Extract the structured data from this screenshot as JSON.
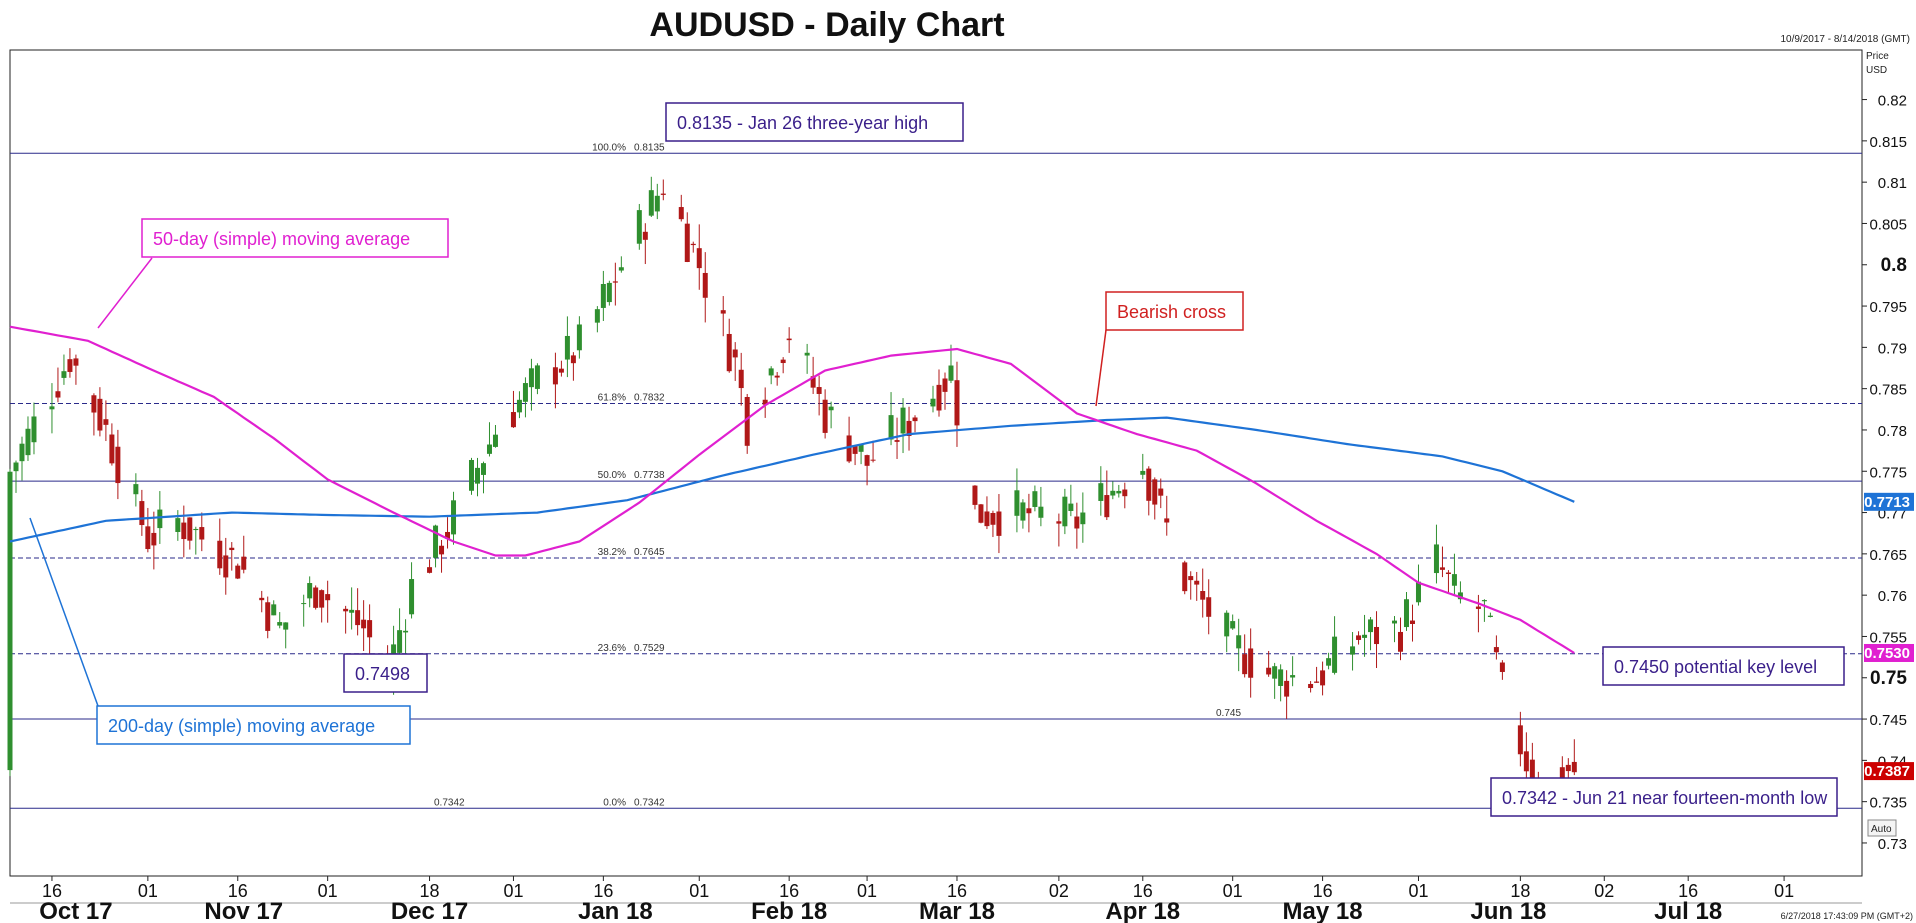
{
  "chart_data": {
    "type": "candlestick",
    "title": "AUDUSD - Daily Chart",
    "date_range": "10/9/2017 - 8/14/2018 (GMT)",
    "axis_unit_line1": "Price",
    "axis_unit_line2": "USD",
    "auto_label": "Auto",
    "footer_text": "6/27/2018 17:43:09 PM (GMT+2)",
    "ylim": [
      0.726,
      0.826
    ],
    "y_ticks": [
      "0.82",
      "0.815",
      "0.81",
      "0.805",
      "0.8",
      "0.795",
      "0.79",
      "0.785",
      "0.78",
      "0.775",
      "0.77",
      "0.765",
      "0.76",
      "0.755",
      "0.75",
      "0.745",
      "0.74",
      "0.735",
      "0.73"
    ],
    "y_ticks_bold": [
      "0.8",
      "0.75"
    ],
    "x_day_ticks": [
      {
        "label": "16",
        "date": "2017-10-16"
      },
      {
        "label": "01",
        "date": "2017-11-01"
      },
      {
        "label": "16",
        "date": "2017-11-16"
      },
      {
        "label": "01",
        "date": "2017-12-01"
      },
      {
        "label": "18",
        "date": "2017-12-18"
      },
      {
        "label": "01",
        "date": "2018-01-01"
      },
      {
        "label": "16",
        "date": "2018-01-16"
      },
      {
        "label": "01",
        "date": "2018-02-01"
      },
      {
        "label": "16",
        "date": "2018-02-16"
      },
      {
        "label": "01",
        "date": "2018-03-01"
      },
      {
        "label": "16",
        "date": "2018-03-16"
      },
      {
        "label": "02",
        "date": "2018-04-02"
      },
      {
        "label": "16",
        "date": "2018-04-16"
      },
      {
        "label": "01",
        "date": "2018-05-01"
      },
      {
        "label": "16",
        "date": "2018-05-16"
      },
      {
        "label": "01",
        "date": "2018-06-01"
      },
      {
        "label": "18",
        "date": "2018-06-18"
      },
      {
        "label": "02",
        "date": "2018-07-02"
      },
      {
        "label": "16",
        "date": "2018-07-16"
      },
      {
        "label": "01",
        "date": "2018-08-01"
      }
    ],
    "x_month_labels": [
      {
        "label": "Oct 17",
        "date": "2017-10-20"
      },
      {
        "label": "Nov 17",
        "date": "2017-11-17"
      },
      {
        "label": "Dec 17",
        "date": "2017-12-18"
      },
      {
        "label": "Jan 18",
        "date": "2018-01-18"
      },
      {
        "label": "Feb 18",
        "date": "2018-02-16"
      },
      {
        "label": "Mar 18",
        "date": "2018-03-16"
      },
      {
        "label": "Apr 18",
        "date": "2018-04-16"
      },
      {
        "label": "May 18",
        "date": "2018-05-16"
      },
      {
        "label": "Jun 18",
        "date": "2018-06-16"
      },
      {
        "label": "Jul 18",
        "date": "2018-07-16"
      }
    ],
    "x_start": "2017-10-09",
    "x_end": "2018-08-14",
    "sma_start": "2017-10-09",
    "sma_end": "2018-06-27",
    "sma50_knots": [
      [
        "2017-10-09",
        0.7925
      ],
      [
        "2017-10-22",
        0.7908
      ],
      [
        "2017-11-01",
        0.7875
      ],
      [
        "2017-11-12",
        0.784
      ],
      [
        "2017-11-22",
        0.779
      ],
      [
        "2017-12-01",
        0.774
      ],
      [
        "2017-12-12",
        0.77
      ],
      [
        "2017-12-22",
        0.7665
      ],
      [
        "2017-12-29",
        0.7648
      ],
      [
        "2018-01-03",
        0.7648
      ],
      [
        "2018-01-12",
        0.7665
      ],
      [
        "2018-01-22",
        0.7712
      ],
      [
        "2018-02-01",
        0.777
      ],
      [
        "2018-02-12",
        0.783
      ],
      [
        "2018-02-22",
        0.7872
      ],
      [
        "2018-03-05",
        0.789
      ],
      [
        "2018-03-16",
        0.7898
      ],
      [
        "2018-03-25",
        0.788
      ],
      [
        "2018-04-05",
        0.782
      ],
      [
        "2018-04-15",
        0.7795
      ],
      [
        "2018-04-25",
        0.7775
      ],
      [
        "2018-05-05",
        0.7735
      ],
      [
        "2018-05-15",
        0.769
      ],
      [
        "2018-05-25",
        0.765
      ],
      [
        "2018-06-01",
        0.7615
      ],
      [
        "2018-06-11",
        0.759
      ],
      [
        "2018-06-18",
        0.757
      ],
      [
        "2018-06-27",
        0.753
      ]
    ],
    "sma200_knots": [
      [
        "2017-10-09",
        0.7665
      ],
      [
        "2017-10-25",
        0.769
      ],
      [
        "2017-11-15",
        0.77
      ],
      [
        "2017-12-01",
        0.7697
      ],
      [
        "2017-12-18",
        0.7695
      ],
      [
        "2018-01-05",
        0.77
      ],
      [
        "2018-01-20",
        0.7715
      ],
      [
        "2018-02-05",
        0.7745
      ],
      [
        "2018-02-20",
        0.777
      ],
      [
        "2018-03-08",
        0.7795
      ],
      [
        "2018-03-25",
        0.7805
      ],
      [
        "2018-04-10",
        0.7812
      ],
      [
        "2018-04-20",
        0.7815
      ],
      [
        "2018-05-05",
        0.78
      ],
      [
        "2018-05-20",
        0.7783
      ],
      [
        "2018-06-05",
        0.7768
      ],
      [
        "2018-06-15",
        0.775
      ],
      [
        "2018-06-27",
        0.7713
      ]
    ],
    "candle_knots": [
      [
        "2017-10-09",
        0.775
      ],
      [
        "2017-10-19",
        0.789
      ],
      [
        "2017-10-25",
        0.78
      ],
      [
        "2017-11-01",
        0.767
      ],
      [
        "2017-11-06",
        0.769
      ],
      [
        "2017-11-16",
        0.764
      ],
      [
        "2017-11-23",
        0.756
      ],
      [
        "2017-11-29",
        0.761
      ],
      [
        "2017-12-07",
        0.756
      ],
      [
        "2017-12-11",
        0.7505
      ],
      [
        "2017-12-15",
        0.761
      ],
      [
        "2017-12-21",
        0.768
      ],
      [
        "2017-12-29",
        0.78
      ],
      [
        "2018-01-05",
        0.786
      ],
      [
        "2018-01-12",
        0.79
      ],
      [
        "2018-01-19",
        0.8
      ],
      [
        "2018-01-26",
        0.81
      ],
      [
        "2018-02-01",
        0.8
      ],
      [
        "2018-02-07",
        0.788
      ],
      [
        "2018-02-09",
        0.781
      ],
      [
        "2018-02-16",
        0.792
      ],
      [
        "2018-02-22",
        0.782
      ],
      [
        "2018-03-01",
        0.776
      ],
      [
        "2018-03-09",
        0.782
      ],
      [
        "2018-03-15",
        0.787
      ],
      [
        "2018-03-19",
        0.77
      ],
      [
        "2018-03-27",
        0.77
      ],
      [
        "2018-04-05",
        0.769
      ],
      [
        "2018-04-16",
        0.776
      ],
      [
        "2018-04-23",
        0.762
      ],
      [
        "2018-05-01",
        0.754
      ],
      [
        "2018-05-08",
        0.75
      ],
      [
        "2018-05-15",
        0.75
      ],
      [
        "2018-05-22",
        0.755
      ],
      [
        "2018-05-29",
        0.756
      ],
      [
        "2018-06-04",
        0.764
      ],
      [
        "2018-06-07",
        0.76
      ],
      [
        "2018-06-12",
        0.758
      ],
      [
        "2018-06-15",
        0.748
      ],
      [
        "2018-06-21",
        0.736
      ],
      [
        "2018-06-25",
        0.739
      ],
      [
        "2018-06-27",
        0.7387
      ]
    ],
    "fib_levels": [
      {
        "label": "100.0%",
        "value_text": "0.8135",
        "price": 0.8135,
        "style": "solid"
      },
      {
        "label": "61.8%",
        "value_text": "0.7832",
        "price": 0.7832,
        "style": "dashed"
      },
      {
        "label": "50.0%",
        "value_text": "0.7738",
        "price": 0.7738,
        "style": "solid"
      },
      {
        "label": "38.2%",
        "value_text": "0.7645",
        "price": 0.7645,
        "style": "dashed"
      },
      {
        "label": "23.6%",
        "value_text": "0.7529",
        "price": 0.7529,
        "style": "dashed"
      },
      {
        "label": "0.0%",
        "value_text": "0.7342",
        "price": 0.7342,
        "style": "solid"
      }
    ],
    "level_0745": {
      "text": "0.745",
      "price": 0.745
    },
    "level_07342": {
      "text": "0.7342",
      "price": 0.7342
    },
    "price_tags": [
      {
        "text": "0.7713",
        "price": 0.7713,
        "color": "#1e73d6"
      },
      {
        "text": "0.7530",
        "price": 0.753,
        "color": "#e020d0"
      },
      {
        "text": "0.7387",
        "price": 0.7387,
        "color": "#cc0000"
      }
    ],
    "annotations": {
      "high": {
        "text": "0.8135 - Jan 26 three-year high",
        "color": "#3a1f8a"
      },
      "sma50": {
        "text": "50-day (simple) moving average",
        "color": "#e020d0"
      },
      "bearish": {
        "text": "Bearish cross",
        "color": "#d02020"
      },
      "low_dec": {
        "text": "0.7498",
        "color": "#3a1f8a"
      },
      "sma200": {
        "text": "200-day (simple) moving average",
        "color": "#1e73d6"
      },
      "key_level": {
        "text": "0.7450 potential key level",
        "color": "#3a1f8a"
      },
      "low_jun": {
        "text": "0.7342 - Jun 21 near fourteen-month low",
        "color": "#3a1f8a"
      }
    },
    "colors": {
      "up": "#2f8f2f",
      "down": "#b01818",
      "sma50": "#e020d0",
      "sma200": "#1e73d6",
      "fib": "#2a2a8a"
    }
  }
}
